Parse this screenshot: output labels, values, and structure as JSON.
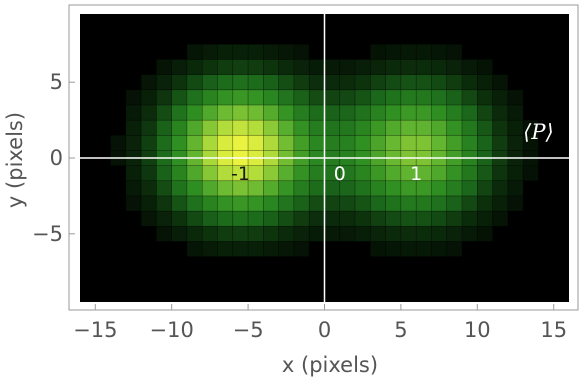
{
  "chart_data": {
    "type": "heatmap",
    "title": "",
    "xlabel": "x (pixels)",
    "ylabel": "y (pixels)",
    "xlim": [
      -16,
      16
    ],
    "ylim": [
      -9.5,
      9.5
    ],
    "xticks": [
      -15,
      -10,
      -5,
      0,
      5,
      10,
      15
    ],
    "xtick_labels": [
      "−15",
      "−10",
      "−5",
      "0",
      "5",
      "10",
      "15"
    ],
    "yticks": [
      -5,
      0,
      5
    ],
    "ytick_labels": [
      "−5",
      "0",
      "5"
    ],
    "pixel_size": 1,
    "colormap": [
      "#000000",
      "#0c2e0c",
      "#1c6a1c",
      "#2f8f22",
      "#60b430",
      "#a8d83a",
      "#eef540"
    ],
    "lobes": [
      {
        "center_x": -5.5,
        "center_y": 0.5,
        "peak": 1.0
      },
      {
        "center_x": 6.0,
        "center_y": 0.5,
        "peak": 0.75
      }
    ],
    "crosshair_lines": {
      "x": 0,
      "y": 0,
      "color": "#ffffff"
    },
    "annotations": [
      {
        "text": "-1",
        "x": -5.5,
        "y": -1.0,
        "color": "#1a1a1a"
      },
      {
        "text": "0",
        "x": 1.0,
        "y": -1.0,
        "color": "#ffffff"
      },
      {
        "text": "1",
        "x": 6.0,
        "y": -1.0,
        "color": "#ffffff"
      },
      {
        "text": "⟨P⟩",
        "x": 14.0,
        "y": 1.7,
        "color": "#ffffff"
      }
    ]
  }
}
